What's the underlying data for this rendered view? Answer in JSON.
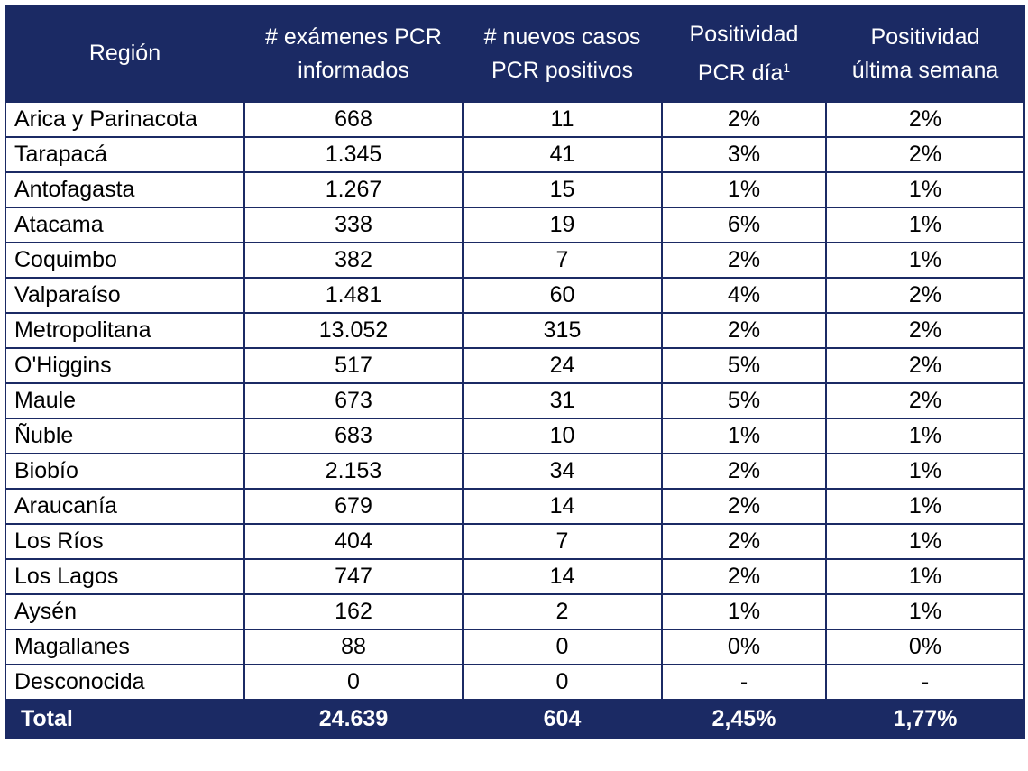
{
  "chart_data": {
    "type": "table",
    "header": {
      "region": "Región",
      "tests": [
        "# exámenes PCR",
        "informados"
      ],
      "new_cases": [
        "# nuevos casos",
        "PCR positivos"
      ],
      "positivity_day": [
        "Positividad",
        "PCR día"
      ],
      "positivity_day_sup": "1",
      "positivity_week": [
        "Positividad",
        "última semana"
      ]
    },
    "rows": [
      {
        "region": "Arica y Parinacota",
        "tests": "668",
        "new_cases": "11",
        "positivity_day": "2%",
        "positivity_week": "2%"
      },
      {
        "region": "Tarapacá",
        "tests": "1.345",
        "new_cases": "41",
        "positivity_day": "3%",
        "positivity_week": "2%"
      },
      {
        "region": "Antofagasta",
        "tests": "1.267",
        "new_cases": "15",
        "positivity_day": "1%",
        "positivity_week": "1%"
      },
      {
        "region": "Atacama",
        "tests": "338",
        "new_cases": "19",
        "positivity_day": "6%",
        "positivity_week": "1%"
      },
      {
        "region": "Coquimbo",
        "tests": "382",
        "new_cases": "7",
        "positivity_day": "2%",
        "positivity_week": "1%"
      },
      {
        "region": "Valparaíso",
        "tests": "1.481",
        "new_cases": "60",
        "positivity_day": "4%",
        "positivity_week": "2%"
      },
      {
        "region": "Metropolitana",
        "tests": "13.052",
        "new_cases": "315",
        "positivity_day": "2%",
        "positivity_week": "2%"
      },
      {
        "region": "O'Higgins",
        "tests": "517",
        "new_cases": "24",
        "positivity_day": "5%",
        "positivity_week": "2%"
      },
      {
        "region": "Maule",
        "tests": "673",
        "new_cases": "31",
        "positivity_day": "5%",
        "positivity_week": "2%"
      },
      {
        "region": "Ñuble",
        "tests": "683",
        "new_cases": "10",
        "positivity_day": "1%",
        "positivity_week": "1%"
      },
      {
        "region": "Biobío",
        "tests": "2.153",
        "new_cases": "34",
        "positivity_day": "2%",
        "positivity_week": "1%"
      },
      {
        "region": "Araucanía",
        "tests": "679",
        "new_cases": "14",
        "positivity_day": "2%",
        "positivity_week": "1%"
      },
      {
        "region": "Los Ríos",
        "tests": "404",
        "new_cases": "7",
        "positivity_day": "2%",
        "positivity_week": "1%"
      },
      {
        "region": "Los Lagos",
        "tests": "747",
        "new_cases": "14",
        "positivity_day": "2%",
        "positivity_week": "1%"
      },
      {
        "region": "Aysén",
        "tests": "162",
        "new_cases": "2",
        "positivity_day": "1%",
        "positivity_week": "1%"
      },
      {
        "region": "Magallanes",
        "tests": "88",
        "new_cases": "0",
        "positivity_day": "0%",
        "positivity_week": "0%"
      },
      {
        "region": "Desconocida",
        "tests": "0",
        "new_cases": "0",
        "positivity_day": "-",
        "positivity_week": "-"
      }
    ],
    "total": {
      "region": "Total",
      "tests": "24.639",
      "new_cases": "604",
      "positivity_day": "2,45%",
      "positivity_week": "1,77%"
    },
    "colors": {
      "header_bg": "#1b2a64",
      "header_text": "#ffffff",
      "border": "#1b2a64"
    }
  }
}
